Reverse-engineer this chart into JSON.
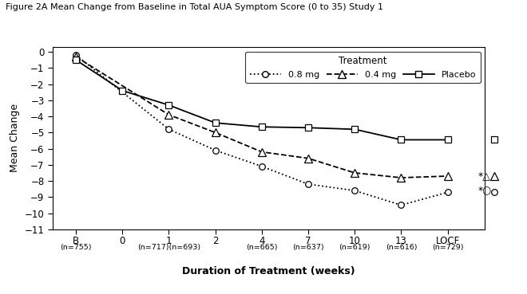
{
  "title": "Figure 2A Mean Change from Baseline in Total AUA Symptom Score (0 to 35) Study 1",
  "xlabel": "Duration of Treatment (weeks)",
  "ylabel": "Mean Change",
  "legend_title": "Treatment",
  "ylim": [
    -11,
    0.3
  ],
  "yticks": [
    0,
    -1,
    -2,
    -3,
    -4,
    -5,
    -6,
    -7,
    -8,
    -9,
    -10,
    -11
  ],
  "x_ticks_pos": [
    0,
    1,
    2,
    3,
    4,
    5,
    6,
    7,
    8,
    9
  ],
  "x_labels": [
    "B",
    "0",
    "1",
    "2",
    "4",
    "7",
    "10",
    "13",
    "LOCF",
    ""
  ],
  "dose_08": {
    "label": "0.8 mg",
    "x": [
      0,
      2,
      3,
      4,
      5,
      6,
      7,
      8
    ],
    "y": [
      -0.2,
      -4.8,
      -6.1,
      -7.1,
      -8.2,
      -8.6,
      -9.5,
      -8.7
    ],
    "locf_x": 9,
    "locf_y": -8.7
  },
  "dose_04": {
    "label": "0.4 mg",
    "x": [
      0,
      2,
      3,
      4,
      5,
      6,
      7,
      8
    ],
    "y": [
      -0.3,
      -3.9,
      -5.0,
      -6.2,
      -6.6,
      -7.5,
      -7.8,
      -7.7
    ],
    "locf_x": 9,
    "locf_y": -7.7
  },
  "placebo": {
    "label": "Placebo",
    "x": [
      0,
      1,
      2,
      3,
      4,
      5,
      6,
      7,
      8
    ],
    "y": [
      -0.5,
      -2.4,
      -3.3,
      -4.4,
      -4.65,
      -4.7,
      -4.8,
      -5.45,
      -5.45
    ],
    "locf_x": 9,
    "locf_y": -5.45
  },
  "sublabels": [
    [
      0,
      "(n=755)"
    ],
    [
      2,
      "(n=717)(n=693)"
    ],
    [
      4,
      "(n=665)"
    ],
    [
      5,
      "(n=637)"
    ],
    [
      6,
      "(n=619)"
    ],
    [
      7,
      "(n=616)"
    ],
    [
      8,
      "(n=729)"
    ]
  ],
  "bg_color": "#ffffff"
}
